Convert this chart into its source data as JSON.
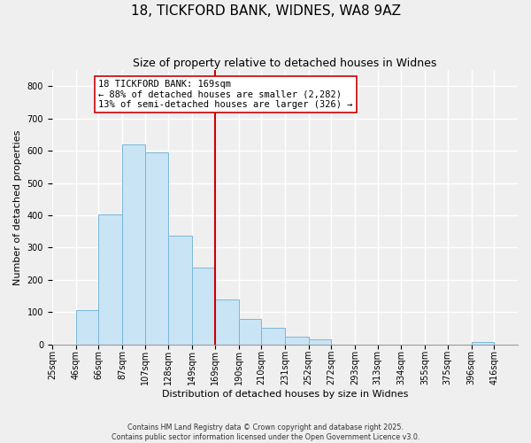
{
  "title": "18, TICKFORD BANK, WIDNES, WA8 9AZ",
  "subtitle": "Size of property relative to detached houses in Widnes",
  "xlabel": "Distribution of detached houses by size in Widnes",
  "ylabel": "Number of detached properties",
  "bins": [
    25,
    46,
    66,
    87,
    107,
    128,
    149,
    169,
    190,
    210,
    231,
    252,
    272,
    293,
    313,
    334,
    355,
    375,
    396,
    416,
    437
  ],
  "counts": [
    0,
    107,
    403,
    619,
    594,
    338,
    237,
    140,
    78,
    50,
    25,
    15,
    0,
    0,
    0,
    0,
    0,
    0,
    7,
    0,
    0
  ],
  "bar_color": "#c8e4f5",
  "bar_edge_color": "#7ab8d9",
  "vline_x": 169,
  "vline_color": "#cc0000",
  "annotation_line1": "18 TICKFORD BANK: 169sqm",
  "annotation_line2": "← 88% of detached houses are smaller (2,282)",
  "annotation_line3": "13% of semi-detached houses are larger (326) →",
  "ylim": [
    0,
    850
  ],
  "yticks": [
    0,
    100,
    200,
    300,
    400,
    500,
    600,
    700,
    800
  ],
  "bg_color": "#efefef",
  "grid_color": "#ffffff",
  "footer_line1": "Contains HM Land Registry data © Crown copyright and database right 2025.",
  "footer_line2": "Contains public sector information licensed under the Open Government Licence v3.0.",
  "title_fontsize": 11,
  "subtitle_fontsize": 9,
  "label_fontsize": 8,
  "tick_fontsize": 7,
  "annotation_fontsize": 7.5
}
